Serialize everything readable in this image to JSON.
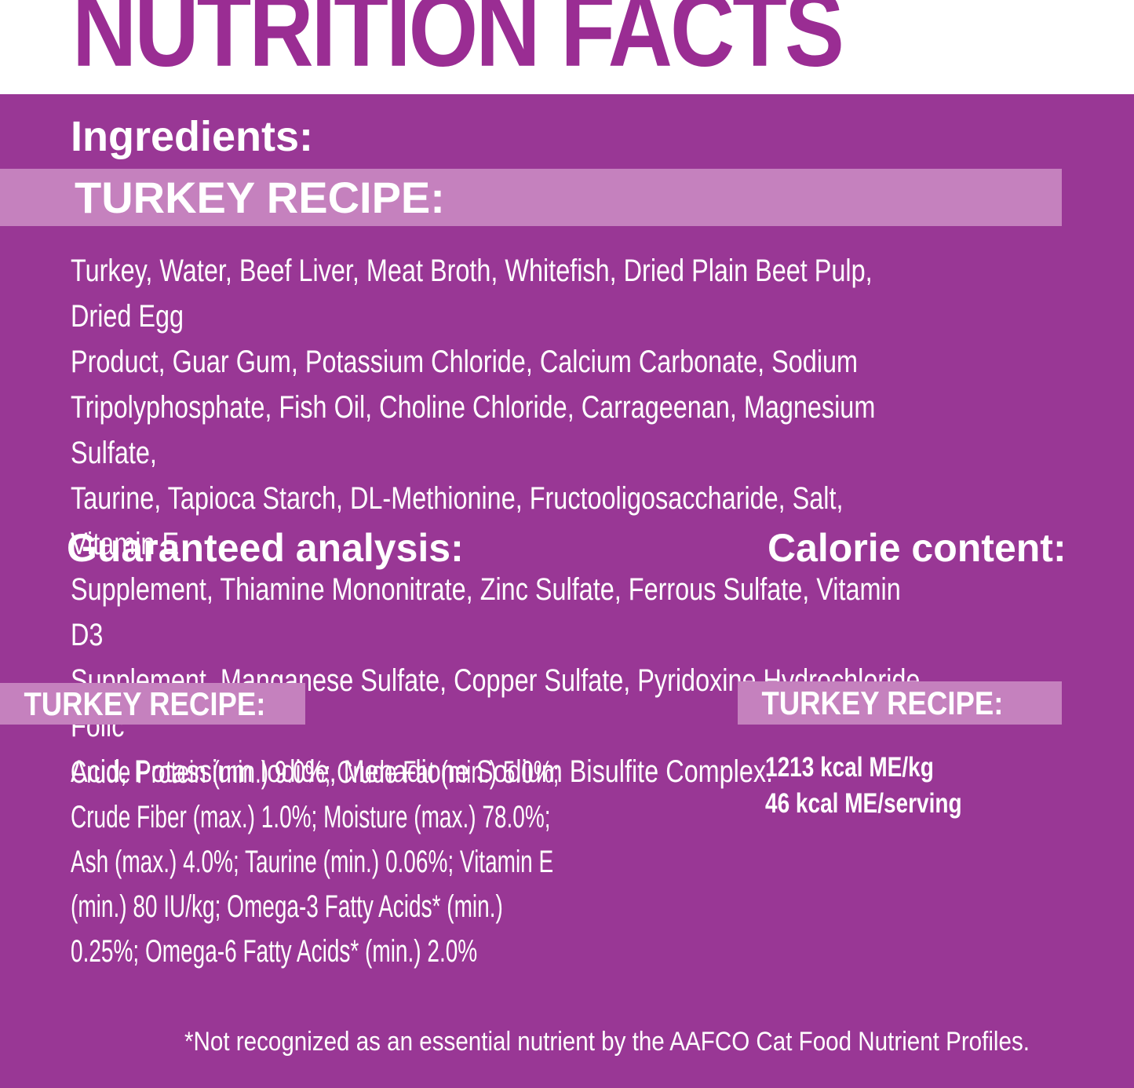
{
  "title": "NUTRITION FACTS",
  "ingredients_section": {
    "heading": "Ingredients:",
    "recipe_band": "TURKEY RECIPE:",
    "ingredients_text": "Turkey, Water, Beef Liver, Meat Broth, Whitefish, Dried Plain Beet Pulp, Dried Egg\nProduct, Guar Gum, Potassium Chloride, Calcium Carbonate, Sodium\nTripolyphosphate, Fish Oil, Choline Chloride, Carrageenan, Magnesium Sulfate,\nTaurine, Tapioca Starch, DL-Methionine, Fructooligosaccharide, Salt, Vitamin E\nSupplement, Thiamine Mononitrate, Zinc Sulfate, Ferrous Sulfate, Vitamin D3\nSupplement, Manganese Sulfate, Copper Sulfate, Pyridoxine Hydrochloride, Folic\nAcid, Potassium Iodide, Menadione Sodium Bisulfite Complex."
  },
  "guaranteed_analysis": {
    "heading": "Guaranteed analysis:",
    "recipe_band": "TURKEY RECIPE:",
    "analysis_text": "Crude Protein (min.) 9.0%; Crude Fat (min.) 5.0%;\nCrude Fiber (max.) 1.0%; Moisture (max.) 78.0%;\nAsh (max.) 4.0%; Taurine (min.) 0.06%; Vitamin E\n(min.) 80 IU/kg; Omega-3 Fatty Acids* (min.)\n0.25%; Omega-6 Fatty Acids* (min.) 2.0%"
  },
  "calorie_content": {
    "heading": "Calorie content:",
    "recipe_band": "TURKEY RECIPE:",
    "values_text": "1213 kcal ME/kg\n46 kcal ME/serving"
  },
  "footnote": "*Not recognized as an essential nutrient by the AAFCO Cat Food Nutrient Profiles.",
  "colors": {
    "background_purple": "#993795",
    "band_light_purple": "#C581BE",
    "title_purple": "#9A2D93",
    "text_white": "#FFFFFF"
  }
}
